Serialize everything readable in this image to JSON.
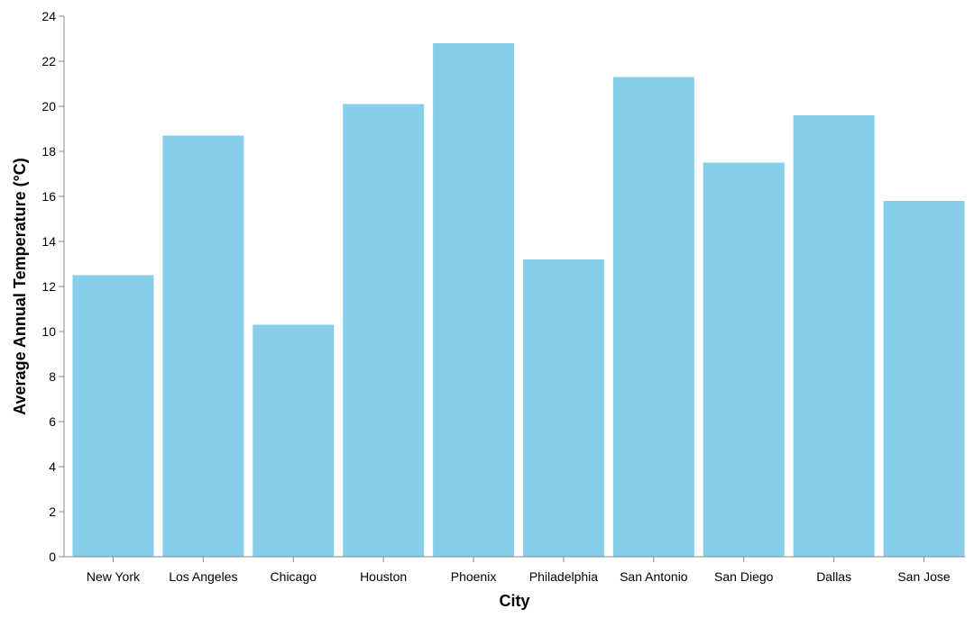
{
  "chart_data": {
    "type": "bar",
    "categories": [
      "New York",
      "Los Angeles",
      "Chicago",
      "Houston",
      "Phoenix",
      "Philadelphia",
      "San Antonio",
      "San Diego",
      "Dallas",
      "San Jose"
    ],
    "values": [
      12.5,
      18.7,
      10.3,
      20.1,
      22.8,
      13.2,
      21.3,
      17.5,
      19.6,
      15.8
    ],
    "xlabel": "City",
    "ylabel": "Average Annual Temperature (°C)",
    "ylim": [
      0,
      24
    ],
    "yticks": [
      "0",
      "2",
      "4",
      "6",
      "8",
      "10",
      "12",
      "14",
      "16",
      "18",
      "20",
      "22",
      "24"
    ],
    "grid": false,
    "bar_color": "#87ceeb",
    "axis_color": "#888888"
  }
}
